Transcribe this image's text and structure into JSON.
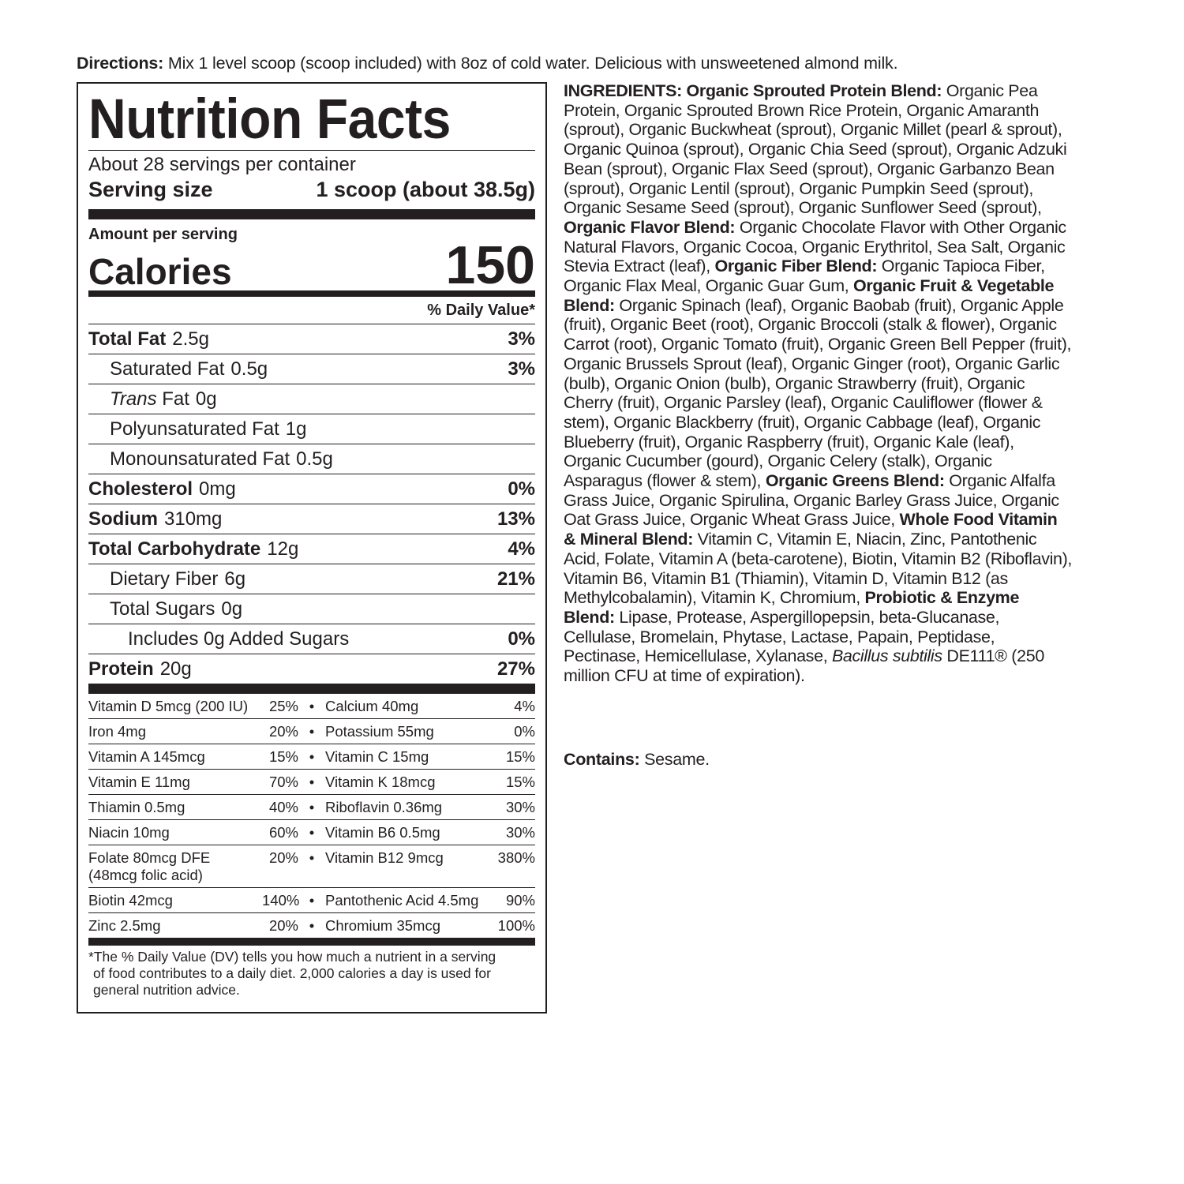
{
  "directions": {
    "label": "Directions:",
    "text": " Mix 1 level scoop (scoop included) with 8oz of cold water. Delicious with unsweetened almond milk."
  },
  "facts": {
    "title": "Nutrition Facts",
    "servings": "About 28 servings per container",
    "serving_size_label": "Serving size",
    "serving_size_value": "1 scoop (about 38.5g)",
    "amount_per_serving": "Amount per serving",
    "calories_label": "Calories",
    "calories_value": "150",
    "dv_header": "% Daily Value*",
    "rows": [
      {
        "name": "Total Fat",
        "amount": "2.5g",
        "dv": "3%",
        "level": 0
      },
      {
        "name": "Saturated Fat",
        "amount": "0.5g",
        "dv": "3%",
        "level": 1
      },
      {
        "name": "Trans",
        "suffix": " Fat",
        "amount": "0g",
        "dv": "",
        "level": 1,
        "italic": true
      },
      {
        "name": "Polyunsaturated Fat",
        "amount": "1g",
        "dv": "",
        "level": 1
      },
      {
        "name": "Monounsaturated Fat",
        "amount": "0.5g",
        "dv": "",
        "level": 1
      },
      {
        "name": "Cholesterol",
        "amount": "0mg",
        "dv": "0%",
        "level": 0
      },
      {
        "name": "Sodium",
        "amount": "310mg",
        "dv": "13%",
        "level": 0
      },
      {
        "name": "Total Carbohydrate",
        "amount": "12g",
        "dv": "4%",
        "level": 0
      },
      {
        "name": "Dietary Fiber",
        "amount": "6g",
        "dv": "21%",
        "level": 1
      },
      {
        "name": "Total Sugars",
        "amount": "0g",
        "dv": "",
        "level": 1
      },
      {
        "name": "Includes 0g Added Sugars",
        "amount": "",
        "dv": "0%",
        "level": 2
      },
      {
        "name": "Protein",
        "amount": "20g",
        "dv": "27%",
        "level": 0
      }
    ],
    "vitamins": [
      {
        "n1": "Vitamin D 5mcg (200 IU)",
        "p1": "25%",
        "n2": "Calcium 40mg",
        "p2": "4%"
      },
      {
        "n1": "Iron 4mg",
        "p1": "20%",
        "n2": "Potassium 55mg",
        "p2": "0%"
      },
      {
        "n1": "Vitamin A 145mcg",
        "p1": "15%",
        "n2": "Vitamin C 15mg",
        "p2": "15%"
      },
      {
        "n1": "Vitamin E 11mg",
        "p1": "70%",
        "n2": "Vitamin K 18mcg",
        "p2": "15%"
      },
      {
        "n1": "Thiamin 0.5mg",
        "p1": "40%",
        "n2": "Riboflavin 0.36mg",
        "p2": "30%"
      },
      {
        "n1": "Niacin 10mg",
        "p1": "60%",
        "n2": "Vitamin B6 0.5mg",
        "p2": "30%"
      },
      {
        "n1": "Folate 80mcg DFE",
        "n1b": "(48mcg folic acid)",
        "p1": "20%",
        "n2": "Vitamin B12 9mcg",
        "p2": "380%"
      },
      {
        "n1": "Biotin 42mcg",
        "p1": "140%",
        "n2": "Pantothenic Acid 4.5mg",
        "p2": "90%"
      },
      {
        "n1": "Zinc 2.5mg",
        "p1": "20%",
        "n2": "Chromium 35mcg",
        "p2": "100%"
      }
    ],
    "bullet": "•",
    "footnote_1": "*The % Daily Value (DV) tells you how much a nutrient in a serving",
    "footnote_2": "of food contributes to a daily diet. 2,000 calories a day is used for",
    "footnote_3": "general nutrition advice."
  },
  "ingredients": {
    "segments": [
      {
        "t": "INGREDIENTS: Organic Sprouted Protein Blend:",
        "b": true
      },
      {
        "t": " Organic Pea Protein, Organic Sprouted Brown Rice Protein, Organic Amaranth (sprout), Organic Buckwheat (sprout), Organic Millet (pearl & sprout), Organic Quinoa (sprout), Organic Chia Seed (sprout), Organic Adzuki Bean (sprout), Organic Flax Seed (sprout), Organic Garbanzo Bean (sprout), Organic Lentil (sprout), Organic Pumpkin Seed (sprout), Organic Sesame Seed (sprout), Organic Sunflower Seed (sprout), "
      },
      {
        "t": "Organic Flavor Blend:",
        "b": true
      },
      {
        "t": " Organic Chocolate Flavor with Other Organic Natural Flavors, Organic Cocoa, Organic Erythritol, Sea Salt, Organic Stevia Extract (leaf), "
      },
      {
        "t": "Organic Fiber Blend:",
        "b": true
      },
      {
        "t": " Organic Tapioca Fiber, Organic Flax Meal, Organic Guar Gum, "
      },
      {
        "t": "Organic Fruit & Vegetable Blend:",
        "b": true
      },
      {
        "t": " Organic Spinach (leaf), Organic Baobab (fruit), Organic Apple (fruit), Organic Beet (root), Organic Broccoli (stalk & flower), Organic Carrot (root), Organic Tomato (fruit), Organic Green Bell Pepper (fruit), Organic Brussels Sprout (leaf), Organic Ginger (root), Organic Garlic (bulb), Organic Onion (bulb), Organic Strawberry (fruit), Organic Cherry (fruit), Organic Parsley (leaf), Organic Cauliflower (flower & stem), Organic Blackberry (fruit), Organic Cabbage (leaf), Organic Blueberry (fruit), Organic Raspberry (fruit), Organic Kale (leaf), Organic Cucumber (gourd), Organic Celery (stalk), Organic Asparagus (flower & stem), "
      },
      {
        "t": "Organic Greens Blend:",
        "b": true
      },
      {
        "t": " Organic Alfalfa Grass Juice, Organic Spirulina, Organic Barley Grass Juice, Organic Oat Grass Juice, Organic Wheat Grass Juice, "
      },
      {
        "t": "Whole Food Vitamin & Mineral Blend:",
        "b": true
      },
      {
        "t": " Vitamin C, Vitamin E, Niacin, Zinc, Pantothenic Acid, Folate, Vitamin A (beta-carotene), Biotin, Vitamin B2 (Riboflavin), Vitamin B6, Vitamin B1 (Thiamin), Vitamin D, Vitamin B12 (as Methylcobalamin), Vitamin K, Chromium, "
      },
      {
        "t": "Probiotic & Enzyme Blend:",
        "b": true
      },
      {
        "t": " Lipase, Protease, Aspergillopepsin, beta-Glucanase, Cellulase, Bromelain, Phytase, Lactase, Papain, Peptidase, Pectinase, Hemicellulase, Xylanase, "
      },
      {
        "t": "Bacillus subtilis",
        "i": true
      },
      {
        "t": " DE111® (250 million CFU at time of expiration)."
      }
    ],
    "contains_label": "Contains:",
    "contains_value": " Sesame."
  }
}
